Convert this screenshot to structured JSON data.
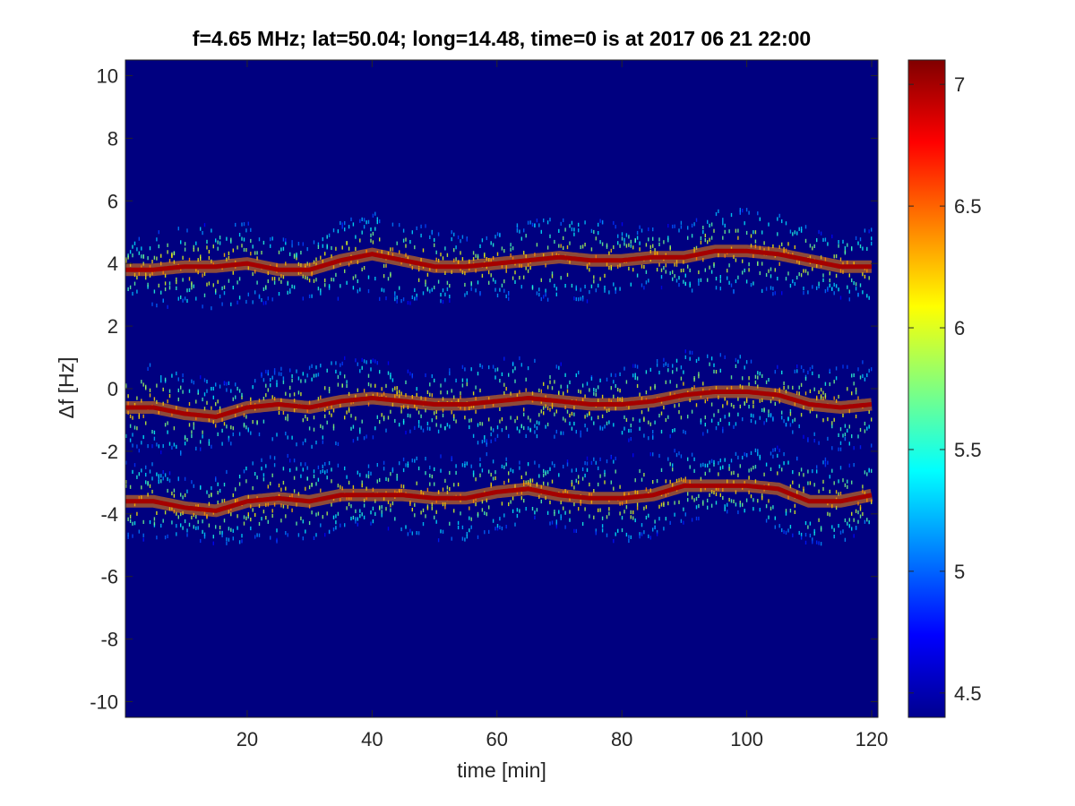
{
  "chart_data": {
    "type": "heatmap",
    "title": "f=4.65 MHz;  lat=50.04; long=14.48, time=0 is at 2017 06 21 22:00",
    "xlabel": "time [min]",
    "ylabel": "Δf [Hz]",
    "xlim": [
      0.5,
      121
    ],
    "ylim": [
      -10.5,
      10.5
    ],
    "x_ticks": [
      20,
      40,
      60,
      80,
      100,
      120
    ],
    "y_ticks": [
      -10,
      -8,
      -6,
      -4,
      -2,
      0,
      2,
      4,
      6,
      8,
      10
    ],
    "grid": false,
    "colormap": "jet",
    "colorbar": {
      "location": "right",
      "clim": [
        4.4,
        7.1
      ],
      "ticks": [
        4.5,
        5,
        5.5,
        6,
        6.5,
        7
      ]
    },
    "background_value": 4.4,
    "traces": [
      {
        "time": [
          0,
          5,
          10,
          15,
          20,
          25,
          30,
          35,
          40,
          45,
          50,
          55,
          60,
          65,
          70,
          75,
          80,
          85,
          90,
          95,
          100,
          105,
          110,
          115,
          120
        ],
        "delta_f": [
          3.8,
          3.8,
          3.9,
          3.9,
          4.0,
          3.8,
          3.8,
          4.1,
          4.3,
          4.1,
          3.9,
          3.9,
          4.0,
          4.1,
          4.2,
          4.1,
          4.1,
          4.2,
          4.2,
          4.4,
          4.4,
          4.3,
          4.1,
          3.9,
          3.9
        ]
      },
      {
        "time": [
          0,
          5,
          10,
          15,
          20,
          25,
          30,
          35,
          40,
          45,
          50,
          55,
          60,
          65,
          70,
          75,
          80,
          85,
          90,
          95,
          100,
          105,
          110,
          115,
          120
        ],
        "delta_f": [
          -0.6,
          -0.6,
          -0.8,
          -0.9,
          -0.6,
          -0.5,
          -0.6,
          -0.4,
          -0.3,
          -0.4,
          -0.5,
          -0.5,
          -0.4,
          -0.3,
          -0.4,
          -0.5,
          -0.5,
          -0.4,
          -0.2,
          -0.1,
          -0.1,
          -0.2,
          -0.5,
          -0.6,
          -0.5
        ]
      },
      {
        "time": [
          0,
          5,
          10,
          15,
          20,
          25,
          30,
          35,
          40,
          45,
          50,
          55,
          60,
          65,
          70,
          75,
          80,
          85,
          90,
          95,
          100,
          105,
          110,
          115,
          120
        ],
        "delta_f": [
          -3.6,
          -3.6,
          -3.8,
          -3.9,
          -3.6,
          -3.5,
          -3.6,
          -3.4,
          -3.4,
          -3.4,
          -3.5,
          -3.5,
          -3.3,
          -3.2,
          -3.4,
          -3.5,
          -3.5,
          -3.4,
          -3.1,
          -3.1,
          -3.1,
          -3.2,
          -3.6,
          -3.6,
          -3.4
        ]
      }
    ]
  }
}
